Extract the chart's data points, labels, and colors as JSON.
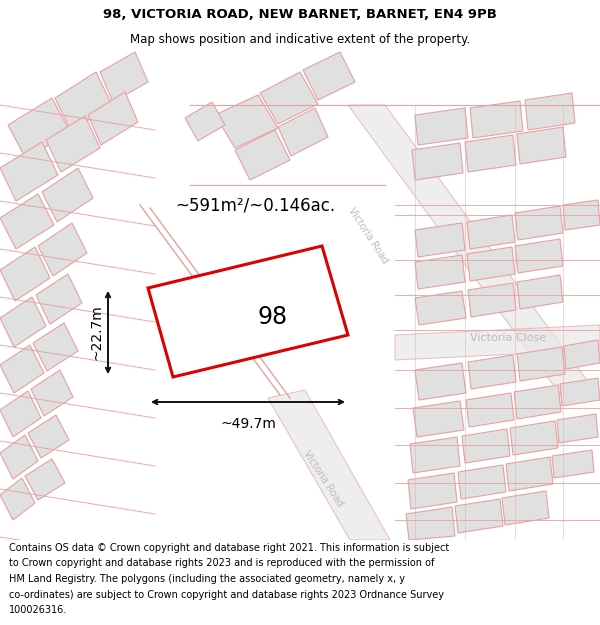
{
  "title_line1": "98, VICTORIA ROAD, NEW BARNET, BARNET, EN4 9PB",
  "title_line2": "Map shows position and indicative extent of the property.",
  "footer_lines": [
    "Contains OS data © Crown copyright and database right 2021. This information is subject",
    "to Crown copyright and database rights 2023 and is reproduced with the permission of",
    "HM Land Registry. The polygons (including the associated geometry, namely x, y",
    "co-ordinates) are subject to Crown copyright and database rights 2023 Ordnance Survey",
    "100026316."
  ],
  "map_bg": "#f2f2f2",
  "building_face": "#e0e0e0",
  "building_edge": "#e8a0a0",
  "road_fill": "#e8e8e8",
  "road_edge": "#e8a0a0",
  "highlight_color": "#dd0000",
  "dim_color": "#111111",
  "road_label_color": "#bbbbbb",
  "area_text": "~591m²/~0.146ac.",
  "width_text": "~49.7m",
  "height_text": "~22.7m",
  "plot_number": "98",
  "road_label_1": "Victoria Road",
  "road_label_2": "Victoria Road",
  "road_label_3": "Victoria Close",
  "title_fontsize": 9.5,
  "subtitle_fontsize": 8.5,
  "footer_fontsize": 7.0,
  "area_fontsize": 12,
  "dim_fontsize": 10,
  "plot_fontsize": 17,
  "road_label_fontsize": 7
}
